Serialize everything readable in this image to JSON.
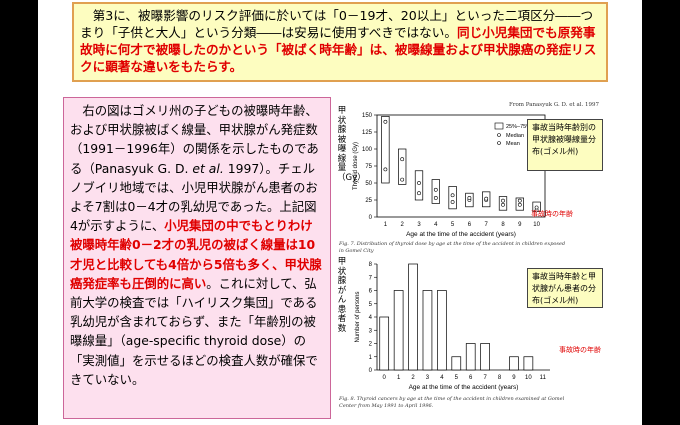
{
  "header": {
    "part1": "　第3に、被曝影響のリスク評価に於いては「0－19才、20以上」といった二項区分――つまり「子供と大人」という分類――は安易に使用すべきではない。",
    "part2": "同じ小児集団でも原発事故時に何才で被曝したのかという「被ばく時年齢」は、被曝線量および甲状腺癌の発症リスクに顕著な違いをもたらす。"
  },
  "body": {
    "part1": "　右の図はゴメリ州の子どもの被曝時年齢、および甲状腺被ばく線量、甲状腺がん発症数（1991－1996年）の関係を示したものである（Panasyuk G. D. ",
    "etal": "et al.",
    "part2": " 1997）。チェルノブイリ地域では、小児甲状腺がん患者のおよそ7割は0－4才の乳幼児であった。上記図4が示すように、",
    "red": "小児集団の中でもとりわけ被曝時年齢0－2才の乳児の被ばく線量は10才児と比較しても4倍から5倍も多く、甲状腺癌発症率も圧倒的に高い",
    "part3": "。これに対して、弘前大学の検査では「ハイリスク集団」である乳幼児が含まれておらず、また「年齢別の被曝線量」（age-specific thyroid dose）の「実測値」を示せるほどの検査人数が確保できていない。"
  },
  "figure1": {
    "source": "From Panasyuk G. D. et al. 1997",
    "side_label": "甲状腺被曝線量（Gy）",
    "legend": [
      "25%–75%",
      "Median",
      "Mean"
    ],
    "annotation": "事故当時年齢別の甲状腺被曝線量分布(ゴメル州)",
    "age_note": "事故時の年齢",
    "caption": "Fig. 7. Distribution of thyroid dose by age at the time of the accident in children exposed in Gomel City",
    "chart_data": {
      "type": "box",
      "ylabel": "Thyroid dose (Gy)",
      "xlabel": "Age at the time of the accident (years)",
      "categories": [
        "1",
        "2",
        "3",
        "4",
        "5",
        "6",
        "7",
        "8",
        "9",
        "10"
      ],
      "yticks": [
        "0",
        "25",
        "50",
        "75",
        "100",
        "125",
        "150"
      ],
      "ylim": [
        0,
        150
      ],
      "q1": [
        50,
        48,
        25,
        20,
        12,
        15,
        15,
        10,
        10,
        8
      ],
      "q3": [
        148,
        100,
        68,
        55,
        45,
        35,
        37,
        30,
        28,
        22
      ],
      "median": [
        70,
        55,
        35,
        28,
        22,
        25,
        25,
        18,
        18,
        10
      ],
      "mean": [
        140,
        85,
        50,
        40,
        32,
        28,
        27,
        24,
        24,
        14
      ]
    }
  },
  "figure2": {
    "side_label": "甲状腺がん患者数",
    "annotation": "事故当時年齢と甲状腺がん患者の分布(ゴメル州)",
    "age_note": "事故時の年齢",
    "caption": "Fig. 8. Thyroid cancers by age at the time of the accident in children examined at Gomel Center from May 1991 to April 1996.",
    "chart_data": {
      "type": "bar",
      "ylabel": "Number of persons",
      "xlabel": "Age at the time of the accident (years)",
      "categories": [
        "0",
        "1",
        "2",
        "3",
        "4",
        "5",
        "6",
        "7",
        "8",
        "9",
        "10",
        "11"
      ],
      "values": [
        4,
        6,
        8,
        6,
        6,
        1,
        2,
        2,
        0,
        1,
        1,
        0
      ],
      "yticks": [
        "0",
        "1",
        "2",
        "3",
        "4",
        "5",
        "6",
        "7",
        "8"
      ],
      "ylim": [
        0,
        8
      ]
    }
  }
}
